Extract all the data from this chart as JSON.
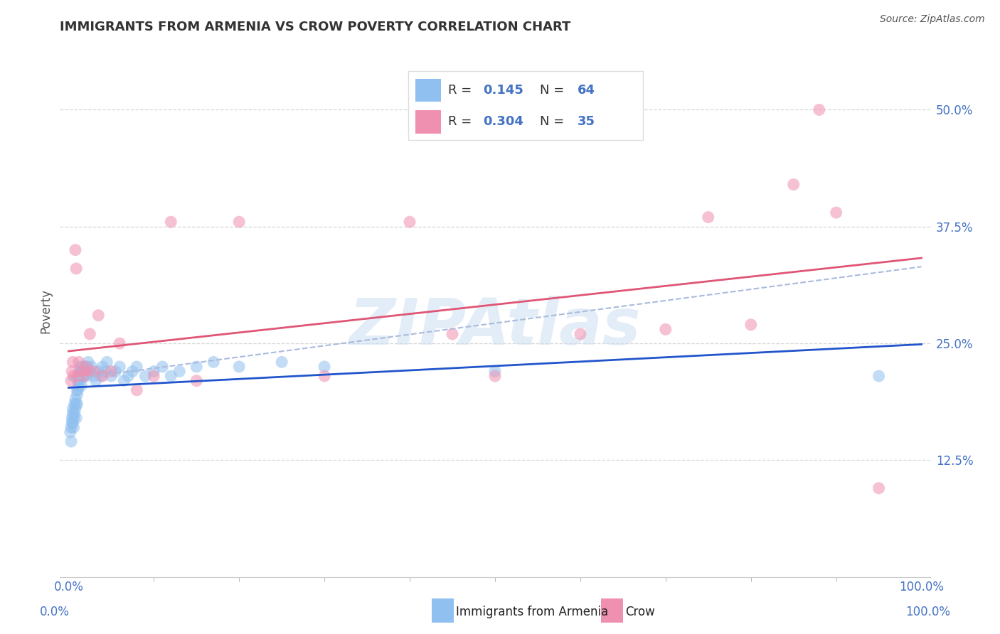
{
  "title": "IMMIGRANTS FROM ARMENIA VS CROW POVERTY CORRELATION CHART",
  "source_text": "Source: ZipAtlas.com",
  "ylabel": "Poverty",
  "ytick_labels": [
    "12.5%",
    "25.0%",
    "37.5%",
    "50.0%"
  ],
  "ytick_values": [
    0.125,
    0.25,
    0.375,
    0.5
  ],
  "xtick_labels": [
    "0.0%",
    "100.0%"
  ],
  "xtick_values": [
    0.0,
    1.0
  ],
  "xlim": [
    -0.01,
    1.01
  ],
  "ylim": [
    0.0,
    0.57
  ],
  "R_armenia": "0.145",
  "N_armenia": 64,
  "R_crow": "0.304",
  "N_crow": 35,
  "color_armenia": "#90c0f0",
  "color_crow": "#f090b0",
  "color_trendline_armenia": "#2255cc",
  "color_trendline_crow": "#e05575",
  "color_trendline_dashed": "#aabbdd",
  "watermark": "ZIPAtlas",
  "background_color": "#ffffff",
  "grid_color": "#cccccc",
  "title_color": "#333333",
  "title_fontsize": 13,
  "tick_color": "#4472c4",
  "tick_fontsize": 12,
  "bottom_label1": "Immigrants from Armenia",
  "bottom_label2": "Crow",
  "armenia_x": [
    0.002,
    0.003,
    0.003,
    0.004,
    0.004,
    0.005,
    0.005,
    0.005,
    0.006,
    0.006,
    0.007,
    0.007,
    0.008,
    0.008,
    0.009,
    0.009,
    0.01,
    0.01,
    0.01,
    0.011,
    0.011,
    0.012,
    0.012,
    0.013,
    0.013,
    0.014,
    0.015,
    0.015,
    0.016,
    0.017,
    0.018,
    0.019,
    0.02,
    0.021,
    0.022,
    0.023,
    0.025,
    0.027,
    0.03,
    0.032,
    0.035,
    0.038,
    0.04,
    0.043,
    0.045,
    0.05,
    0.055,
    0.06,
    0.065,
    0.07,
    0.075,
    0.08,
    0.09,
    0.1,
    0.11,
    0.12,
    0.13,
    0.15,
    0.17,
    0.2,
    0.25,
    0.3,
    0.5,
    0.95
  ],
  "armenia_y": [
    0.155,
    0.145,
    0.16,
    0.17,
    0.165,
    0.175,
    0.165,
    0.18,
    0.17,
    0.16,
    0.175,
    0.185,
    0.19,
    0.18,
    0.185,
    0.17,
    0.195,
    0.2,
    0.185,
    0.21,
    0.2,
    0.215,
    0.205,
    0.22,
    0.21,
    0.225,
    0.215,
    0.205,
    0.22,
    0.225,
    0.215,
    0.22,
    0.22,
    0.215,
    0.225,
    0.23,
    0.22,
    0.225,
    0.215,
    0.21,
    0.22,
    0.215,
    0.225,
    0.22,
    0.23,
    0.215,
    0.22,
    0.225,
    0.21,
    0.215,
    0.22,
    0.225,
    0.215,
    0.22,
    0.225,
    0.215,
    0.22,
    0.225,
    0.23,
    0.225,
    0.23,
    0.225,
    0.22,
    0.215
  ],
  "crow_x": [
    0.003,
    0.004,
    0.005,
    0.006,
    0.008,
    0.009,
    0.01,
    0.012,
    0.015,
    0.018,
    0.02,
    0.022,
    0.025,
    0.03,
    0.035,
    0.04,
    0.05,
    0.06,
    0.08,
    0.1,
    0.12,
    0.15,
    0.2,
    0.3,
    0.4,
    0.45,
    0.5,
    0.6,
    0.7,
    0.75,
    0.8,
    0.85,
    0.88,
    0.9,
    0.95
  ],
  "crow_y": [
    0.21,
    0.22,
    0.23,
    0.215,
    0.35,
    0.33,
    0.215,
    0.23,
    0.22,
    0.215,
    0.225,
    0.22,
    0.26,
    0.22,
    0.28,
    0.215,
    0.22,
    0.25,
    0.2,
    0.215,
    0.38,
    0.21,
    0.38,
    0.215,
    0.38,
    0.26,
    0.215,
    0.26,
    0.265,
    0.385,
    0.27,
    0.42,
    0.5,
    0.39,
    0.095
  ]
}
